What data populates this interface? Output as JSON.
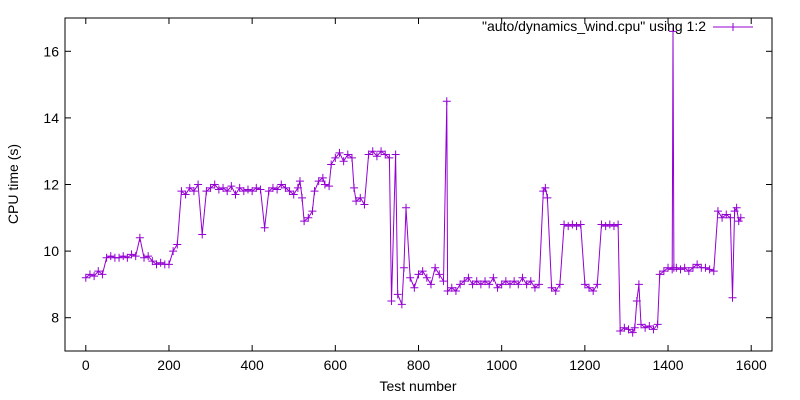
{
  "chart_data": {
    "type": "line",
    "title": "",
    "xlabel": "Test number",
    "ylabel": "CPU time (s)",
    "xlim": [
      -50,
      1650
    ],
    "ylim": [
      7,
      17
    ],
    "xticks": [
      0,
      200,
      400,
      600,
      800,
      1000,
      1200,
      1400,
      1600
    ],
    "yticks": [
      8,
      10,
      12,
      14,
      16
    ],
    "grid": false,
    "legend_position": "top-right",
    "series": [
      {
        "name": "\"auto/dynamics_wind.cpu\" using 1:2",
        "color": "#9400d3",
        "marker": "plus",
        "points": [
          [
            0,
            9.2
          ],
          [
            10,
            9.3
          ],
          [
            20,
            9.25
          ],
          [
            30,
            9.4
          ],
          [
            40,
            9.3
          ],
          [
            50,
            9.8
          ],
          [
            60,
            9.85
          ],
          [
            70,
            9.8
          ],
          [
            80,
            9.8
          ],
          [
            90,
            9.85
          ],
          [
            100,
            9.8
          ],
          [
            110,
            9.9
          ],
          [
            120,
            9.85
          ],
          [
            130,
            10.4
          ],
          [
            140,
            9.8
          ],
          [
            150,
            9.85
          ],
          [
            160,
            9.7
          ],
          [
            170,
            9.6
          ],
          [
            180,
            9.65
          ],
          [
            190,
            9.6
          ],
          [
            200,
            9.6
          ],
          [
            210,
            10.0
          ],
          [
            220,
            10.2
          ],
          [
            230,
            11.8
          ],
          [
            240,
            11.7
          ],
          [
            250,
            11.9
          ],
          [
            260,
            11.8
          ],
          [
            270,
            12.0
          ],
          [
            280,
            10.5
          ],
          [
            290,
            11.8
          ],
          [
            300,
            11.9
          ],
          [
            310,
            12.0
          ],
          [
            320,
            11.85
          ],
          [
            330,
            11.9
          ],
          [
            340,
            11.8
          ],
          [
            350,
            11.95
          ],
          [
            360,
            11.7
          ],
          [
            370,
            11.9
          ],
          [
            380,
            11.8
          ],
          [
            390,
            11.85
          ],
          [
            400,
            11.8
          ],
          [
            410,
            11.9
          ],
          [
            420,
            11.85
          ],
          [
            430,
            10.7
          ],
          [
            440,
            11.8
          ],
          [
            450,
            11.9
          ],
          [
            460,
            11.85
          ],
          [
            470,
            12.0
          ],
          [
            480,
            11.9
          ],
          [
            490,
            11.8
          ],
          [
            500,
            11.7
          ],
          [
            510,
            11.9
          ],
          [
            515,
            12.1
          ],
          [
            520,
            11.6
          ],
          [
            525,
            10.9
          ],
          [
            535,
            11.0
          ],
          [
            545,
            11.2
          ],
          [
            550,
            11.8
          ],
          [
            560,
            12.1
          ],
          [
            570,
            12.2
          ],
          [
            575,
            12.0
          ],
          [
            585,
            11.95
          ],
          [
            590,
            12.6
          ],
          [
            600,
            12.8
          ],
          [
            610,
            12.95
          ],
          [
            620,
            12.7
          ],
          [
            630,
            12.9
          ],
          [
            640,
            12.8
          ],
          [
            645,
            11.9
          ],
          [
            650,
            11.5
          ],
          [
            660,
            11.6
          ],
          [
            670,
            11.4
          ],
          [
            680,
            12.9
          ],
          [
            690,
            13.0
          ],
          [
            700,
            12.85
          ],
          [
            710,
            13.0
          ],
          [
            720,
            12.9
          ],
          [
            730,
            12.8
          ],
          [
            735,
            8.5
          ],
          [
            745,
            12.9
          ],
          [
            750,
            8.7
          ],
          [
            760,
            8.4
          ],
          [
            765,
            9.5
          ],
          [
            770,
            11.3
          ],
          [
            780,
            9.2
          ],
          [
            790,
            8.9
          ],
          [
            800,
            9.3
          ],
          [
            810,
            9.4
          ],
          [
            820,
            9.2
          ],
          [
            830,
            9.0
          ],
          [
            840,
            9.5
          ],
          [
            850,
            9.3
          ],
          [
            860,
            9.1
          ],
          [
            868,
            14.5
          ],
          [
            870,
            8.8
          ],
          [
            880,
            8.9
          ],
          [
            890,
            8.8
          ],
          [
            900,
            9.0
          ],
          [
            910,
            9.1
          ],
          [
            920,
            9.2
          ],
          [
            930,
            9.0
          ],
          [
            940,
            9.1
          ],
          [
            950,
            9.0
          ],
          [
            960,
            9.1
          ],
          [
            970,
            9.0
          ],
          [
            980,
            9.2
          ],
          [
            990,
            8.9
          ],
          [
            1000,
            9.0
          ],
          [
            1010,
            9.1
          ],
          [
            1020,
            9.0
          ],
          [
            1030,
            9.1
          ],
          [
            1040,
            9.0
          ],
          [
            1050,
            9.2
          ],
          [
            1060,
            9.0
          ],
          [
            1070,
            9.1
          ],
          [
            1080,
            8.9
          ],
          [
            1090,
            9.0
          ],
          [
            1100,
            11.8
          ],
          [
            1105,
            11.9
          ],
          [
            1110,
            11.6
          ],
          [
            1120,
            8.9
          ],
          [
            1130,
            8.8
          ],
          [
            1140,
            9.0
          ],
          [
            1150,
            10.8
          ],
          [
            1160,
            10.75
          ],
          [
            1170,
            10.8
          ],
          [
            1180,
            10.75
          ],
          [
            1190,
            10.8
          ],
          [
            1200,
            9.0
          ],
          [
            1210,
            8.9
          ],
          [
            1220,
            8.8
          ],
          [
            1230,
            9.0
          ],
          [
            1240,
            10.8
          ],
          [
            1250,
            10.75
          ],
          [
            1260,
            10.8
          ],
          [
            1270,
            10.75
          ],
          [
            1280,
            10.8
          ],
          [
            1285,
            7.6
          ],
          [
            1295,
            7.7
          ],
          [
            1305,
            7.65
          ],
          [
            1315,
            7.55
          ],
          [
            1320,
            7.7
          ],
          [
            1325,
            8.5
          ],
          [
            1330,
            9.0
          ],
          [
            1335,
            7.8
          ],
          [
            1345,
            7.7
          ],
          [
            1355,
            7.75
          ],
          [
            1365,
            7.65
          ],
          [
            1375,
            7.8
          ],
          [
            1380,
            9.3
          ],
          [
            1390,
            9.4
          ],
          [
            1400,
            9.5
          ],
          [
            1410,
            9.45
          ],
          [
            1412,
            16.6
          ],
          [
            1414,
            9.5
          ],
          [
            1420,
            9.5
          ],
          [
            1430,
            9.45
          ],
          [
            1440,
            9.5
          ],
          [
            1450,
            9.4
          ],
          [
            1460,
            9.5
          ],
          [
            1470,
            9.6
          ],
          [
            1480,
            9.5
          ],
          [
            1490,
            9.5
          ],
          [
            1500,
            9.45
          ],
          [
            1510,
            9.4
          ],
          [
            1520,
            11.2
          ],
          [
            1530,
            11.0
          ],
          [
            1540,
            11.1
          ],
          [
            1550,
            11.0
          ],
          [
            1555,
            8.6
          ],
          [
            1560,
            11.2
          ],
          [
            1565,
            11.3
          ],
          [
            1570,
            10.9
          ],
          [
            1575,
            11.0
          ]
        ]
      }
    ]
  }
}
